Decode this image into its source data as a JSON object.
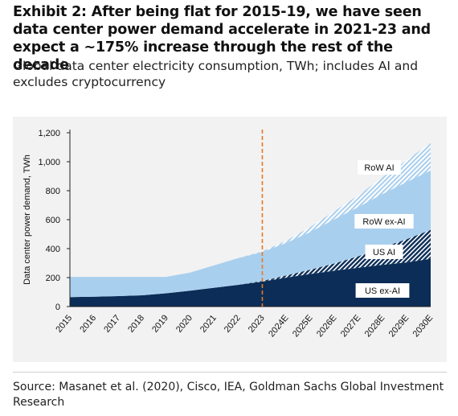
{
  "header": {
    "title": "Exhibit 2: After being flat for 2015-19, we have seen data center power demand accelerate in 2021-23 and expect a ~175% increase through the rest of the decade",
    "subtitle": "Global data center electricity consumption, TWh; includes AI and excludes cryptocurrency"
  },
  "footer": {
    "source": "Source: Masanet et al. (2020), Cisco, IEA, Goldman Sachs Global Investment Research"
  },
  "chart_data": {
    "type": "area",
    "stacked": true,
    "ylabel": "Data center power demand, TWh",
    "ylim": [
      0,
      1200
    ],
    "yticks": [
      "0",
      "200",
      "400",
      "600",
      "800",
      "1,000",
      "1,200"
    ],
    "ytick_values": [
      0,
      200,
      400,
      600,
      800,
      1000,
      1200
    ],
    "categories": [
      "2015",
      "2016",
      "2017",
      "2018",
      "2019",
      "2020",
      "2021",
      "2022",
      "2023",
      "2024E",
      "2025E",
      "2026E",
      "2027E",
      "2028E",
      "2029E",
      "2030E"
    ],
    "forecast_divider_after": "2023",
    "series": [
      {
        "name": "US ex-AI",
        "color": "#0b2d57",
        "pattern": "solid",
        "values": [
          65,
          68,
          72,
          78,
          92,
          110,
          130,
          150,
          172,
          200,
          225,
          248,
          268,
          288,
          305,
          330
        ]
      },
      {
        "name": "US AI",
        "color": "#0b2d57",
        "pattern": "dots",
        "values": [
          0,
          0,
          0,
          0,
          0,
          0,
          0,
          0,
          5,
          15,
          30,
          50,
          80,
          120,
          160,
          200
        ]
      },
      {
        "name": "RoW ex-AI",
        "color": "#a9cfee",
        "pattern": "solid",
        "values": [
          140,
          137,
          133,
          127,
          113,
          125,
          155,
          185,
          200,
          225,
          260,
          305,
          340,
          370,
          395,
          410
        ]
      },
      {
        "name": "RoW AI",
        "color": "#a9cfee",
        "pattern": "hatch",
        "values": [
          0,
          0,
          0,
          0,
          0,
          0,
          0,
          0,
          5,
          15,
          35,
          55,
          80,
          115,
          150,
          190
        ]
      }
    ],
    "labels": [
      "RoW AI",
      "RoW ex-AI",
      "US AI",
      "US ex-AI"
    ],
    "grid": false,
    "legend": "inline-labels"
  }
}
